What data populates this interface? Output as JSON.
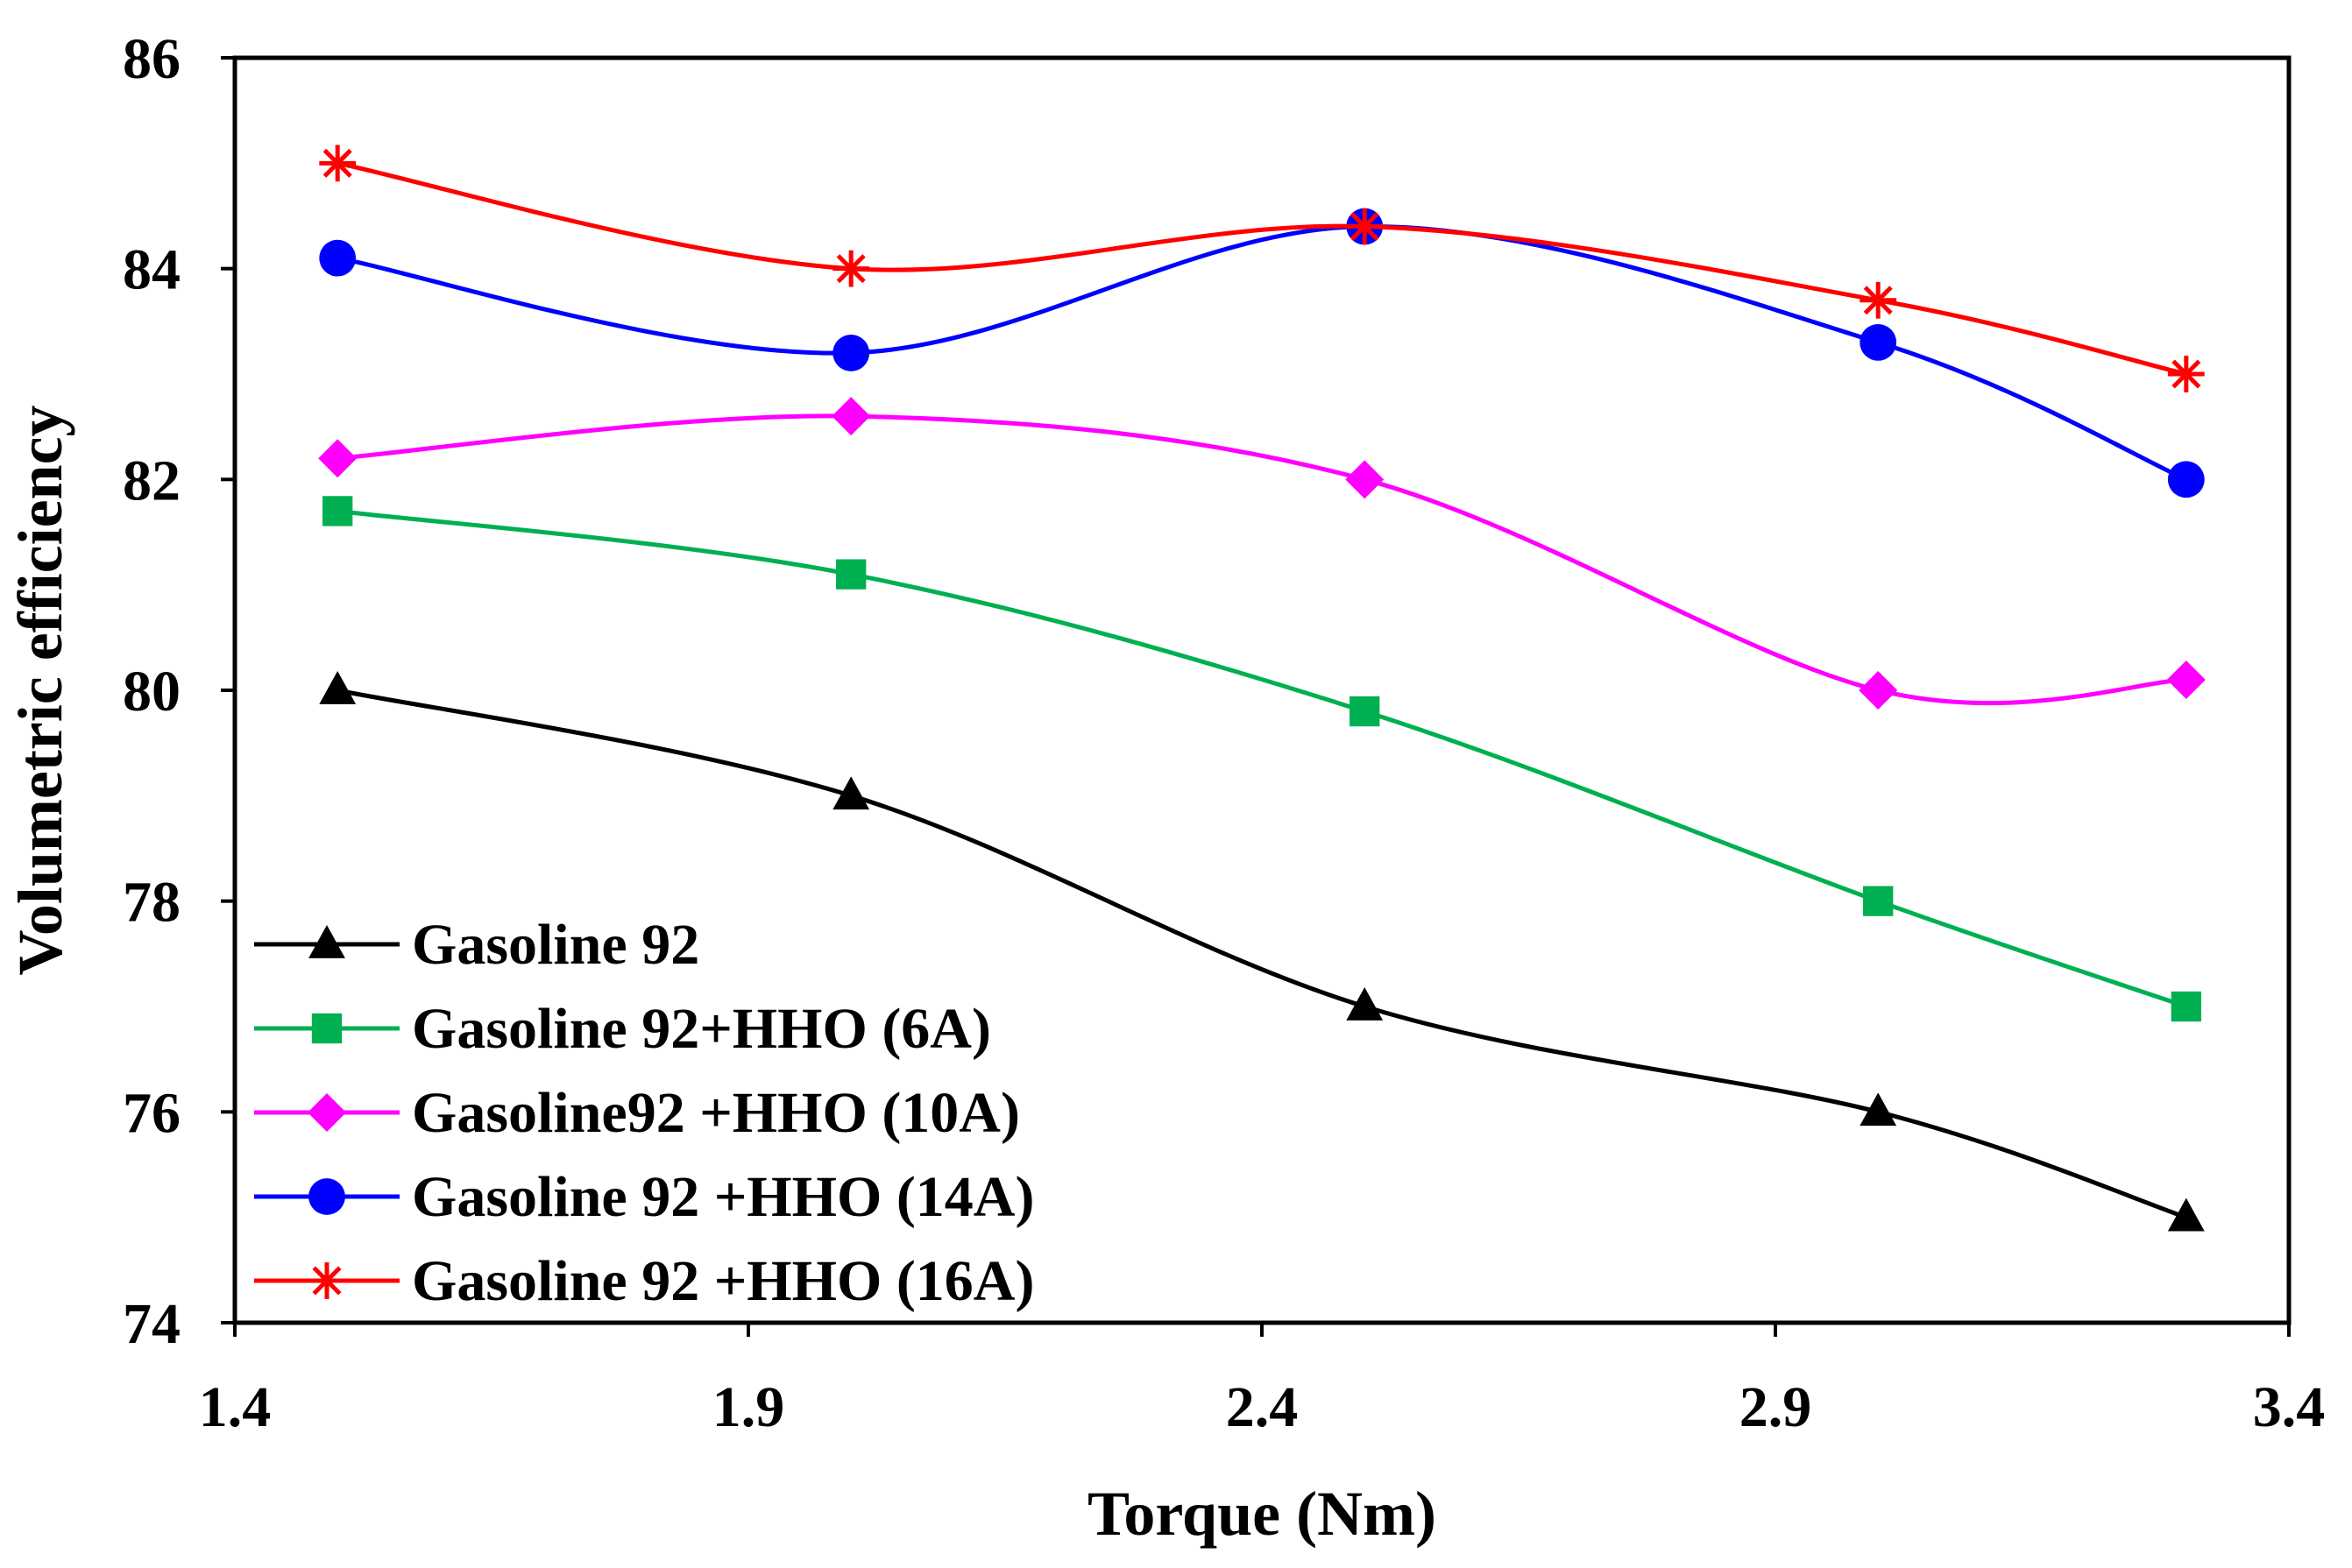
{
  "chart_data": {
    "type": "line",
    "title": "",
    "xlabel": "Torque (Nm)",
    "ylabel": "Volumetric efficiency",
    "xlim": [
      1.4,
      3.4
    ],
    "ylim": [
      74,
      86
    ],
    "xticks": [
      1.4,
      1.9,
      2.4,
      2.9,
      3.4
    ],
    "yticks": [
      74,
      76,
      78,
      80,
      82,
      84,
      86
    ],
    "xtick_labels": [
      "1.4",
      "1.9",
      "2.4",
      "2.9",
      "3.4"
    ],
    "ytick_labels": [
      "74",
      "76",
      "78",
      "80",
      "82",
      "84",
      "86"
    ],
    "grid": false,
    "legend_position": "bottom-left",
    "x": [
      1.5,
      2.0,
      2.5,
      3.0,
      3.3
    ],
    "series": [
      {
        "name": "Gasoline 92",
        "values": [
          80.0,
          79.0,
          77.0,
          76.0,
          75.0
        ],
        "color": "#000000",
        "marker": "triangle"
      },
      {
        "name": "Gasoline 92+HHO (6A)",
        "values": [
          81.7,
          81.1,
          79.8,
          78.0,
          77.0
        ],
        "color": "#00B050",
        "marker": "square"
      },
      {
        "name": "Gasoline92 +HHO (10A)",
        "values": [
          82.2,
          82.6,
          82.0,
          80.0,
          80.1
        ],
        "color": "#FF00FF",
        "marker": "diamond"
      },
      {
        "name": "Gasoline 92 +HHO (14A)",
        "values": [
          84.1,
          83.2,
          84.4,
          83.3,
          82.0
        ],
        "color": "#0000FF",
        "marker": "circle"
      },
      {
        "name": "Gasoline 92 +HHO (16A)",
        "values": [
          85.0,
          84.0,
          84.4,
          83.7,
          83.0
        ],
        "color": "#FF0000",
        "marker": "star"
      }
    ]
  }
}
